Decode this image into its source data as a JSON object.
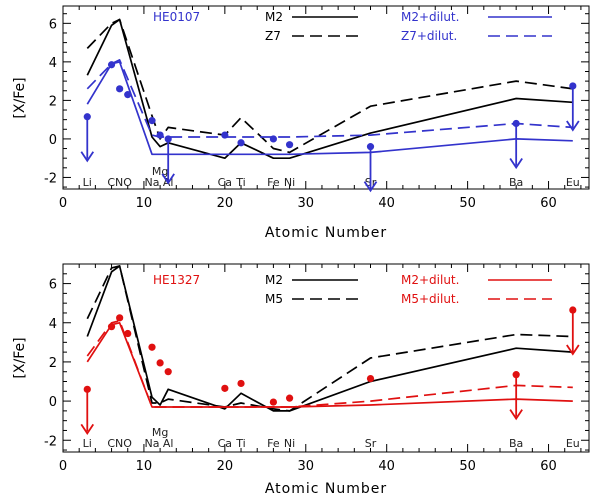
{
  "chart_data": [
    {
      "type": "line",
      "title": "HE0107",
      "title_color": "#3333cc",
      "xlabel": "Atomic Number",
      "ylabel": "[X/Fe]",
      "xlim": [
        0,
        65
      ],
      "ylim": [
        -2.6,
        6.9
      ],
      "xticks": [
        0,
        10,
        20,
        30,
        40,
        50,
        60
      ],
      "yticks": [
        -2,
        0,
        2,
        4,
        6
      ],
      "element_labels": [
        {
          "label": "Li",
          "z": 3,
          "row": "low"
        },
        {
          "label": "CNO",
          "z": 7,
          "row": "low"
        },
        {
          "label": "Na",
          "z": 11,
          "row": "low"
        },
        {
          "label": "Mg",
          "z": 12,
          "row": "high"
        },
        {
          "label": "Al",
          "z": 13,
          "row": "low"
        },
        {
          "label": "Ca",
          "z": 20,
          "row": "low"
        },
        {
          "label": "Ti",
          "z": 22,
          "row": "low"
        },
        {
          "label": "Fe",
          "z": 26,
          "row": "low"
        },
        {
          "label": "Ni",
          "z": 28,
          "row": "low"
        },
        {
          "label": "Sr",
          "z": 38,
          "row": "low"
        },
        {
          "label": "Ba",
          "z": 56,
          "row": "low"
        },
        {
          "label": "Eu",
          "z": 63,
          "row": "low"
        }
      ],
      "legend": [
        {
          "label": "M2",
          "color": "#000000",
          "dash": "solid"
        },
        {
          "label": "Z7",
          "color": "#000000",
          "dash": "dashed"
        },
        {
          "label": "M2+dilut.",
          "color": "#3333cc",
          "dash": "solid"
        },
        {
          "label": "Z7+dilut.",
          "color": "#3333cc",
          "dash": "dashed"
        }
      ],
      "series": [
        {
          "name": "M2",
          "color": "#000000",
          "dash": "solid",
          "x": [
            3,
            6,
            7,
            11,
            12,
            13,
            20,
            22,
            26,
            28,
            38,
            56,
            63
          ],
          "y": [
            3.3,
            5.9,
            6.2,
            0.1,
            -0.4,
            -0.2,
            -1.0,
            -0.2,
            -1.0,
            -1.0,
            0.3,
            2.1,
            1.9
          ]
        },
        {
          "name": "Z7",
          "color": "#000000",
          "dash": "dashed",
          "x": [
            3,
            6,
            7,
            11,
            12,
            13,
            20,
            22,
            26,
            28,
            38,
            56,
            63
          ],
          "y": [
            4.7,
            6.0,
            6.2,
            1.2,
            0.0,
            0.6,
            0.2,
            1.1,
            -0.5,
            -0.7,
            1.7,
            3.0,
            2.6
          ]
        },
        {
          "name": "M2+dilut.",
          "color": "#3333cc",
          "dash": "solid",
          "x": [
            3,
            6,
            7,
            11,
            12,
            13,
            20,
            22,
            26,
            28,
            38,
            56,
            63
          ],
          "y": [
            1.8,
            3.9,
            4.0,
            -0.8,
            -0.8,
            -0.8,
            -0.8,
            -0.8,
            -0.8,
            -0.8,
            -0.7,
            0.0,
            -0.1
          ]
        },
        {
          "name": "Z7+dilut.",
          "color": "#3333cc",
          "dash": "dashed",
          "x": [
            3,
            6,
            7,
            11,
            12,
            13,
            20,
            22,
            26,
            28,
            38,
            56,
            63
          ],
          "y": [
            2.6,
            3.9,
            4.1,
            0.2,
            0.1,
            0.1,
            0.1,
            0.1,
            0.1,
            0.1,
            0.2,
            0.8,
            0.6
          ]
        }
      ],
      "points": {
        "color": "#3333cc",
        "x": [
          3,
          6,
          7,
          8,
          11,
          12,
          13,
          20,
          22,
          26,
          28,
          38,
          56,
          63
        ],
        "y": [
          1.15,
          3.85,
          2.6,
          2.3,
          0.95,
          0.2,
          0.0,
          0.2,
          -0.2,
          0.0,
          -0.3,
          -0.4,
          0.8,
          2.75
        ],
        "upper_limit": [
          true,
          false,
          false,
          false,
          false,
          false,
          true,
          false,
          false,
          false,
          false,
          true,
          true,
          true
        ]
      }
    },
    {
      "type": "line",
      "title": "HE1327",
      "title_color": "#e01010",
      "xlabel": "Atomic Number",
      "ylabel": "[X/Fe]",
      "xlim": [
        0,
        65
      ],
      "ylim": [
        -2.6,
        7.0
      ],
      "xticks": [
        0,
        10,
        20,
        30,
        40,
        50,
        60
      ],
      "yticks": [
        -2,
        0,
        2,
        4,
        6
      ],
      "element_labels": [
        {
          "label": "Li",
          "z": 3,
          "row": "low"
        },
        {
          "label": "CNO",
          "z": 7,
          "row": "low"
        },
        {
          "label": "Na",
          "z": 11,
          "row": "low"
        },
        {
          "label": "Mg",
          "z": 12,
          "row": "high"
        },
        {
          "label": "Al",
          "z": 13,
          "row": "low"
        },
        {
          "label": "Ca",
          "z": 20,
          "row": "low"
        },
        {
          "label": "Ti",
          "z": 22,
          "row": "low"
        },
        {
          "label": "Fe",
          "z": 26,
          "row": "low"
        },
        {
          "label": "Ni",
          "z": 28,
          "row": "low"
        },
        {
          "label": "Sr",
          "z": 38,
          "row": "low"
        },
        {
          "label": "Ba",
          "z": 56,
          "row": "low"
        },
        {
          "label": "Eu",
          "z": 63,
          "row": "low"
        }
      ],
      "legend": [
        {
          "label": "M2",
          "color": "#000000",
          "dash": "solid"
        },
        {
          "label": "M5",
          "color": "#000000",
          "dash": "dashed"
        },
        {
          "label": "M2+dilut.",
          "color": "#e01010",
          "dash": "solid"
        },
        {
          "label": "M5+dilut.",
          "color": "#e01010",
          "dash": "dashed"
        }
      ],
      "series": [
        {
          "name": "M2",
          "color": "#000000",
          "dash": "solid",
          "x": [
            3,
            6,
            7,
            11,
            12,
            13,
            20,
            22,
            26,
            28,
            38,
            56,
            63
          ],
          "y": [
            3.3,
            6.6,
            6.9,
            0.2,
            -0.2,
            0.6,
            -0.4,
            0.4,
            -0.5,
            -0.5,
            1.0,
            2.7,
            2.5
          ]
        },
        {
          "name": "M5",
          "color": "#000000",
          "dash": "dashed",
          "x": [
            3,
            6,
            7,
            11,
            12,
            13,
            20,
            22,
            26,
            28,
            38,
            56,
            63
          ],
          "y": [
            4.2,
            6.8,
            6.9,
            -0.1,
            -0.1,
            0.1,
            -0.3,
            -0.1,
            -0.4,
            -0.5,
            2.2,
            3.4,
            3.3
          ]
        },
        {
          "name": "M2+dilut.",
          "color": "#e01010",
          "dash": "solid",
          "x": [
            3,
            6,
            7,
            11,
            12,
            13,
            20,
            22,
            26,
            28,
            38,
            56,
            63
          ],
          "y": [
            2.0,
            3.9,
            4.0,
            -0.3,
            -0.3,
            -0.3,
            -0.3,
            -0.3,
            -0.3,
            -0.3,
            -0.2,
            0.1,
            0.0
          ]
        },
        {
          "name": "M5+dilut.",
          "color": "#e01010",
          "dash": "dashed",
          "x": [
            3,
            6,
            7,
            11,
            12,
            13,
            20,
            22,
            26,
            28,
            38,
            56,
            63
          ],
          "y": [
            2.3,
            4.0,
            4.1,
            -0.3,
            -0.3,
            -0.3,
            -0.3,
            -0.3,
            -0.3,
            -0.3,
            0.0,
            0.8,
            0.7
          ]
        }
      ],
      "points": {
        "color": "#e01010",
        "x": [
          3,
          6,
          7,
          8,
          11,
          12,
          13,
          20,
          22,
          26,
          28,
          38,
          56,
          63
        ],
        "y": [
          0.6,
          3.8,
          4.25,
          3.45,
          2.75,
          1.95,
          1.5,
          0.65,
          0.9,
          -0.05,
          0.15,
          1.15,
          1.35,
          4.65
        ],
        "upper_limit": [
          true,
          false,
          false,
          false,
          false,
          false,
          false,
          false,
          false,
          false,
          false,
          false,
          true,
          true
        ]
      }
    }
  ]
}
